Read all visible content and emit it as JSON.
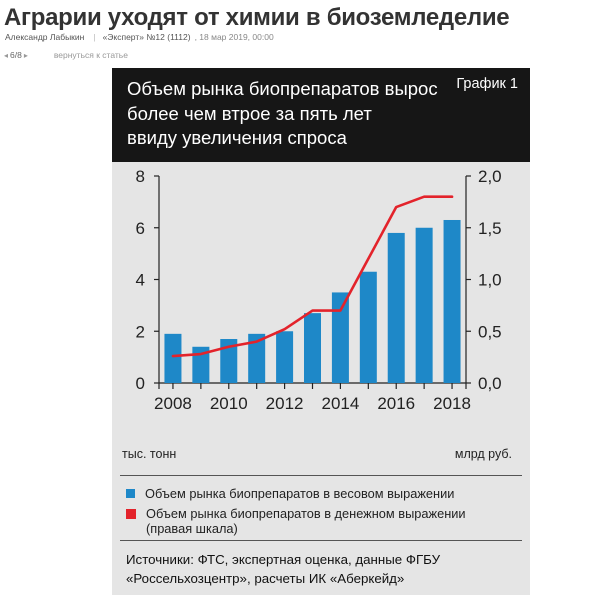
{
  "article": {
    "title": "Аграрии уходят от химии в биоземледелие",
    "author": "Александр Лабыкин",
    "issue": "«Эксперт» №12 (1112)",
    "date": ", 18 мар 2019, 00:00",
    "pager": "6/8",
    "back_link": "вернуться к статье"
  },
  "figure": {
    "tag": "График 1",
    "title_lines": [
      "Объем рынка биопрепаратов вырос",
      "более чем втрое за пять лет",
      "ввиду увеличения спроса"
    ],
    "unit_left": "тыс. тонн",
    "unit_right": "млрд руб.",
    "sources_lines": [
      "Источники: ФТС, экспертная оценка, данные ФГБУ",
      "«Россельхозцентр», расчеты ИК «Аберкейд»"
    ]
  },
  "chart_data": {
    "type": "bar",
    "categories": [
      2008,
      2009,
      2010,
      2011,
      2012,
      2013,
      2014,
      2015,
      2016,
      2017,
      2018
    ],
    "x_tick_labels": [
      "2008",
      "2010",
      "2012",
      "2014",
      "2016",
      "2018"
    ],
    "y_left": {
      "ylim": [
        0,
        8
      ],
      "ticks": [
        "0",
        "2",
        "4",
        "6",
        "8"
      ],
      "label": "тыс. тонн"
    },
    "y_right": {
      "ylim": [
        0,
        2.0
      ],
      "ticks": [
        "0,0",
        "0,5",
        "1,0",
        "1,5",
        "2,0"
      ],
      "label": "млрд руб."
    },
    "series": [
      {
        "name": "Объем рынка биопрепаратов в весовом выражении",
        "type": "bar",
        "axis": "left",
        "color": "#1e88c8",
        "values": [
          1.9,
          1.4,
          1.7,
          1.9,
          2.0,
          2.7,
          3.5,
          4.3,
          5.8,
          6.0,
          6.3
        ]
      },
      {
        "name": "Объем рынка биопрепаратов в денежном выражении (правая шкала)",
        "legend_lines": [
          "Объем рынка биопрепаратов в денежном выражении",
          "(правая шкала)"
        ],
        "type": "line",
        "axis": "right",
        "color": "#e3232b",
        "values": [
          0.26,
          0.28,
          0.35,
          0.4,
          0.52,
          0.7,
          0.7,
          1.2,
          1.7,
          1.8,
          1.8
        ]
      }
    ],
    "grid": false,
    "legend_position": "bottom"
  }
}
